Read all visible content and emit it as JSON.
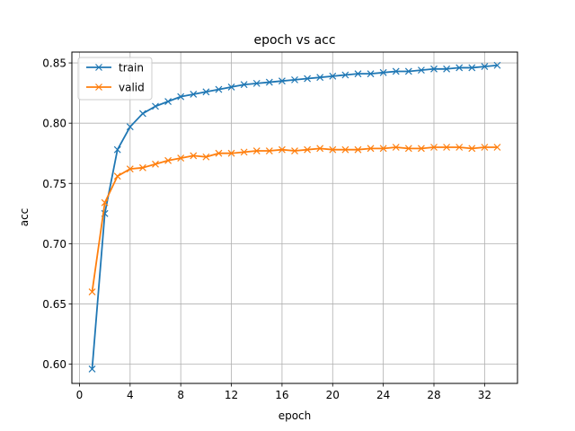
{
  "chart_data": {
    "type": "line",
    "title": "epoch vs acc",
    "xlabel": "epoch",
    "ylabel": "acc",
    "xlim": [
      -0.6,
      34.6
    ],
    "ylim": [
      0.584,
      0.859
    ],
    "xticks": [
      0,
      4,
      8,
      12,
      16,
      20,
      24,
      28,
      32
    ],
    "yticks": [
      0.6,
      0.65,
      0.7,
      0.75,
      0.8,
      0.85
    ],
    "grid": true,
    "legend_position": "top-left",
    "x": [
      1,
      2,
      3,
      4,
      5,
      6,
      7,
      8,
      9,
      10,
      11,
      12,
      13,
      14,
      15,
      16,
      17,
      18,
      19,
      20,
      21,
      22,
      23,
      24,
      25,
      26,
      27,
      28,
      29,
      30,
      31,
      32,
      33
    ],
    "series": [
      {
        "name": "train",
        "color": "#1f77b4",
        "marker": "x",
        "values": [
          0.596,
          0.725,
          0.778,
          0.797,
          0.808,
          0.814,
          0.818,
          0.822,
          0.824,
          0.826,
          0.828,
          0.83,
          0.832,
          0.833,
          0.834,
          0.835,
          0.836,
          0.837,
          0.838,
          0.839,
          0.84,
          0.841,
          0.841,
          0.842,
          0.843,
          0.843,
          0.844,
          0.845,
          0.845,
          0.846,
          0.846,
          0.847,
          0.848
        ]
      },
      {
        "name": "valid",
        "color": "#ff7f0e",
        "marker": "x",
        "values": [
          0.66,
          0.734,
          0.756,
          0.762,
          0.763,
          0.766,
          0.769,
          0.771,
          0.773,
          0.772,
          0.775,
          0.775,
          0.776,
          0.777,
          0.777,
          0.778,
          0.777,
          0.778,
          0.779,
          0.778,
          0.778,
          0.778,
          0.779,
          0.779,
          0.78,
          0.779,
          0.779,
          0.78,
          0.78,
          0.78,
          0.779,
          0.78,
          0.78
        ]
      }
    ]
  }
}
